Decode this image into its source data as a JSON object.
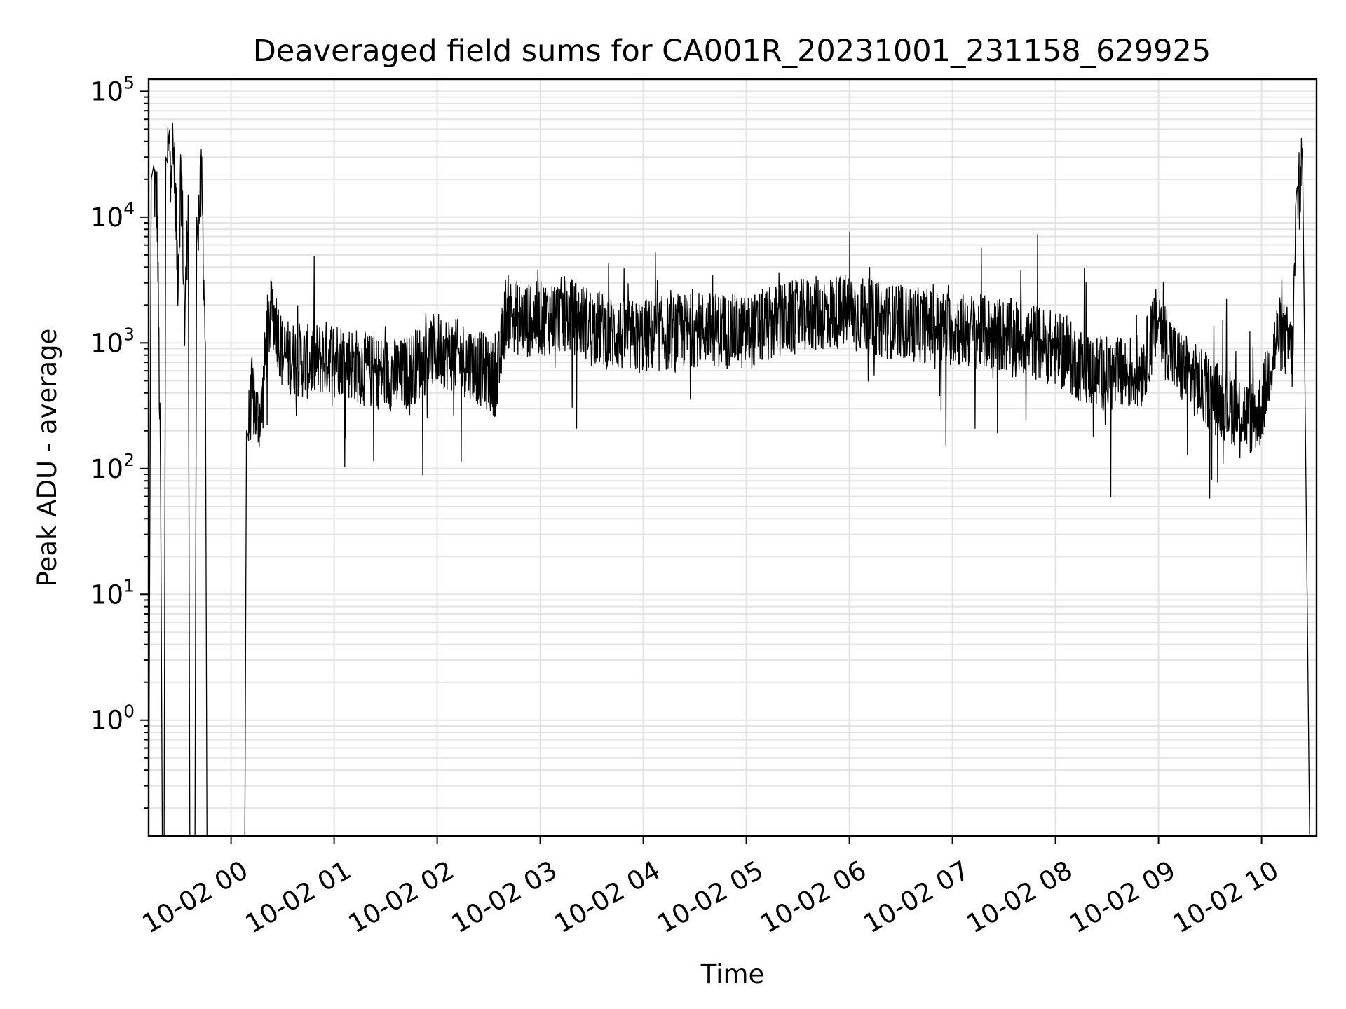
{
  "chart_data": {
    "type": "line",
    "title": "Deaveraged field sums for CA001R_20231001_231158_629925",
    "xlabel": "Time",
    "ylabel": "Peak ADU - average",
    "yscale": "log",
    "ylim": [
      0.12,
      125000
    ],
    "xlim": [
      "2023-10-01 23:12",
      "2023-10-02 10:32"
    ],
    "x_ticks": [
      "10-02 00",
      "10-02 01",
      "10-02 02",
      "10-02 03",
      "10-02 04",
      "10-02 05",
      "10-02 06",
      "10-02 07",
      "10-02 08",
      "10-02 09",
      "10-02 10"
    ],
    "x_tick_values": [
      "2023-10-02 00:00",
      "2023-10-02 01:00",
      "2023-10-02 02:00",
      "2023-10-02 03:00",
      "2023-10-02 04:00",
      "2023-10-02 05:00",
      "2023-10-02 06:00",
      "2023-10-02 07:00",
      "2023-10-02 08:00",
      "2023-10-02 09:00",
      "2023-10-02 10:00"
    ],
    "y_ticks": [
      {
        "base": "10",
        "exp": "0",
        "value": 1
      },
      {
        "base": "10",
        "exp": "1",
        "value": 10
      },
      {
        "base": "10",
        "exp": "2",
        "value": 100
      },
      {
        "base": "10",
        "exp": "3",
        "value": 1000
      },
      {
        "base": "10",
        "exp": "4",
        "value": 10000
      },
      {
        "base": "10",
        "exp": "5",
        "value": 100000
      }
    ],
    "grid": "major and minor",
    "line_color": "#000000",
    "series": [
      {
        "x": [
          "2023-10-01 23:12",
          "2023-10-01 23:15",
          "2023-10-01 23:17",
          "2023-10-01 23:19",
          "2023-10-01 23:21",
          "2023-10-01 23:23",
          "2023-10-01 23:25",
          "2023-10-01 23:27",
          "2023-10-01 23:29",
          "2023-10-01 23:31",
          "2023-10-01 23:33",
          "2023-10-01 23:35",
          "2023-10-01 23:37",
          "2023-10-01 23:39",
          "2023-10-01 23:41",
          "2023-10-01 23:43",
          "2023-10-01 23:45",
          "2023-10-01 23:47",
          "2023-10-01 23:49",
          "2023-10-01 23:51",
          "2023-10-01 23:53",
          "2023-10-02 00:05",
          "2023-10-02 00:08",
          "2023-10-02 00:10",
          "2023-10-02 00:12",
          "2023-10-02 00:15",
          "2023-10-02 00:18",
          "2023-10-02 00:21",
          "2023-10-02 00:24",
          "2023-10-02 00:27",
          "2023-10-02 00:30",
          "2023-10-02 00:45",
          "2023-10-02 01:00",
          "2023-10-02 01:20",
          "2023-10-02 01:40",
          "2023-10-02 02:00",
          "2023-10-02 02:20",
          "2023-10-02 02:35",
          "2023-10-02 02:40",
          "2023-10-02 02:50",
          "2023-10-02 03:05",
          "2023-10-02 03:15",
          "2023-10-02 03:30",
          "2023-10-02 03:40",
          "2023-10-02 03:55",
          "2023-10-02 04:15",
          "2023-10-02 04:35",
          "2023-10-02 05:00",
          "2023-10-02 05:20",
          "2023-10-02 05:40",
          "2023-10-02 06:00",
          "2023-10-02 06:20",
          "2023-10-02 06:40",
          "2023-10-02 07:00",
          "2023-10-02 07:20",
          "2023-10-02 07:40",
          "2023-10-02 08:00",
          "2023-10-02 08:20",
          "2023-10-02 08:35",
          "2023-10-02 08:50",
          "2023-10-02 09:00",
          "2023-10-02 09:10",
          "2023-10-02 09:25",
          "2023-10-02 09:35",
          "2023-10-02 09:45",
          "2023-10-02 09:55",
          "2023-10-02 10:00",
          "2023-10-02 10:05",
          "2023-10-02 10:10",
          "2023-10-02 10:15",
          "2023-10-02 10:18",
          "2023-10-02 10:20",
          "2023-10-02 10:22",
          "2023-10-02 10:24"
        ],
        "values": [
          0.1,
          20000,
          12000,
          60,
          0.1,
          30000,
          40000,
          25000,
          3500,
          30000,
          1200,
          15000,
          0.1,
          0.1,
          10000,
          18000,
          1000,
          0.1,
          0.1,
          0.1,
          0.1,
          0.1,
          0.1,
          200,
          400,
          250,
          300,
          1200,
          1800,
          1300,
          800,
          700,
          800,
          600,
          550,
          900,
          700,
          500,
          1800,
          1500,
          1600,
          1700,
          1400,
          1200,
          1100,
          1200,
          1300,
          1200,
          1500,
          1700,
          1800,
          1500,
          1400,
          1300,
          1200,
          1100,
          900,
          600,
          550,
          600,
          1600,
          700,
          450,
          350,
          300,
          250,
          300,
          700,
          1200,
          1000,
          800,
          9000,
          25000,
          20000
        ]
      }
    ]
  }
}
